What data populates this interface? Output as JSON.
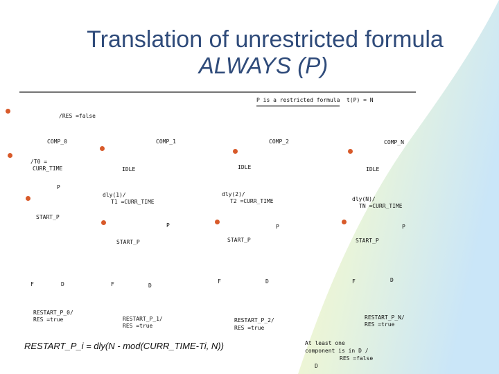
{
  "title": "Translation of unrestricted formula",
  "subtitle": "ALWAYS (P)",
  "header": {
    "restricted_note": "P is a restricted formula",
    "type_note": "t(P) = N"
  },
  "init": {
    "res_false": "/RES =false",
    "t0": "/T0 =",
    "curr_time": "CURR_TIME"
  },
  "components": [
    {
      "name": "COMP_0",
      "p": "P",
      "start": "START_P",
      "f": "F",
      "d": "D",
      "restart": "RESTART_P_0/",
      "res": "RES =true"
    },
    {
      "name": "COMP_1",
      "idle": "IDLE",
      "dly": "dly(1)/",
      "ti": "T1 =CURR_TIME",
      "p": "P",
      "start": "START_P",
      "f": "F",
      "d": "D",
      "restart": "RESTART_P_1/",
      "res": "RES =true"
    },
    {
      "name": "COMP_2",
      "idle": "IDLE",
      "dly": "dly(2)/",
      "ti": "T2 =CURR_TIME",
      "p": "P",
      "start": "START_P",
      "f": "F",
      "d": "D",
      "restart": "RESTART_P_2/",
      "res": "RES =true"
    },
    {
      "name": "COMP_N",
      "idle": "IDLE",
      "dly": "dly(N)/",
      "ti": "TN =CURR_TIME",
      "p": "P",
      "start": "START_P",
      "f": "F",
      "d": "D",
      "restart": "RESTART_P_N/",
      "res": "RES =true"
    }
  ],
  "formula": "RESTART_P_i = dly(N - mod(CURR_TIME-Ti, N))",
  "footer": {
    "line1": "At least one",
    "line2": "component is in D /",
    "line3": "RES =false",
    "line4": "D"
  },
  "colors": {
    "title": "#2f4b7a",
    "dot": "#d85a2a",
    "swoosh_yellow": "#fbf3a8",
    "swoosh_blue": "#c9e6f8"
  }
}
